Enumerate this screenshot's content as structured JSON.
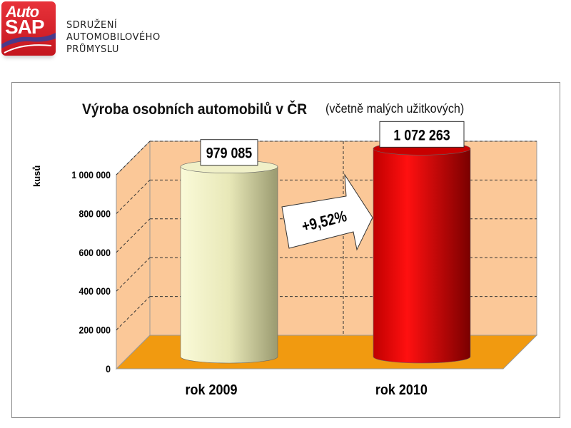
{
  "header": {
    "logo_text": [
      "Auto",
      "SAP"
    ],
    "association_lines": [
      "SDRUŽENÍ",
      "AUTOMOBILOVÉHO",
      "PRŮMYSLU"
    ]
  },
  "chart_data": {
    "type": "bar",
    "title": "Výroba osobních automobilů v ČR",
    "subtitle": "(včetně malých užitkových)",
    "xlabel": "",
    "ylabel": "kusů",
    "categories": [
      "rok 2009",
      "rok 2010"
    ],
    "values": [
      979085,
      1072263
    ],
    "data_labels": [
      "979 085",
      "1 072 263"
    ],
    "ylim": [
      0,
      1000000
    ],
    "yticks": [
      0,
      200000,
      400000,
      600000,
      800000,
      1000000
    ],
    "ytick_labels": [
      "0",
      "200 000",
      "400 000",
      "600 000",
      "800 000",
      "1 000 000"
    ],
    "annotation": "+9,52%",
    "grid": true,
    "colors": {
      "bar_2009": "#e8e8b8",
      "bar_2010": "#e00000",
      "wall": "#fbc898",
      "floor": "#f19a10"
    }
  }
}
